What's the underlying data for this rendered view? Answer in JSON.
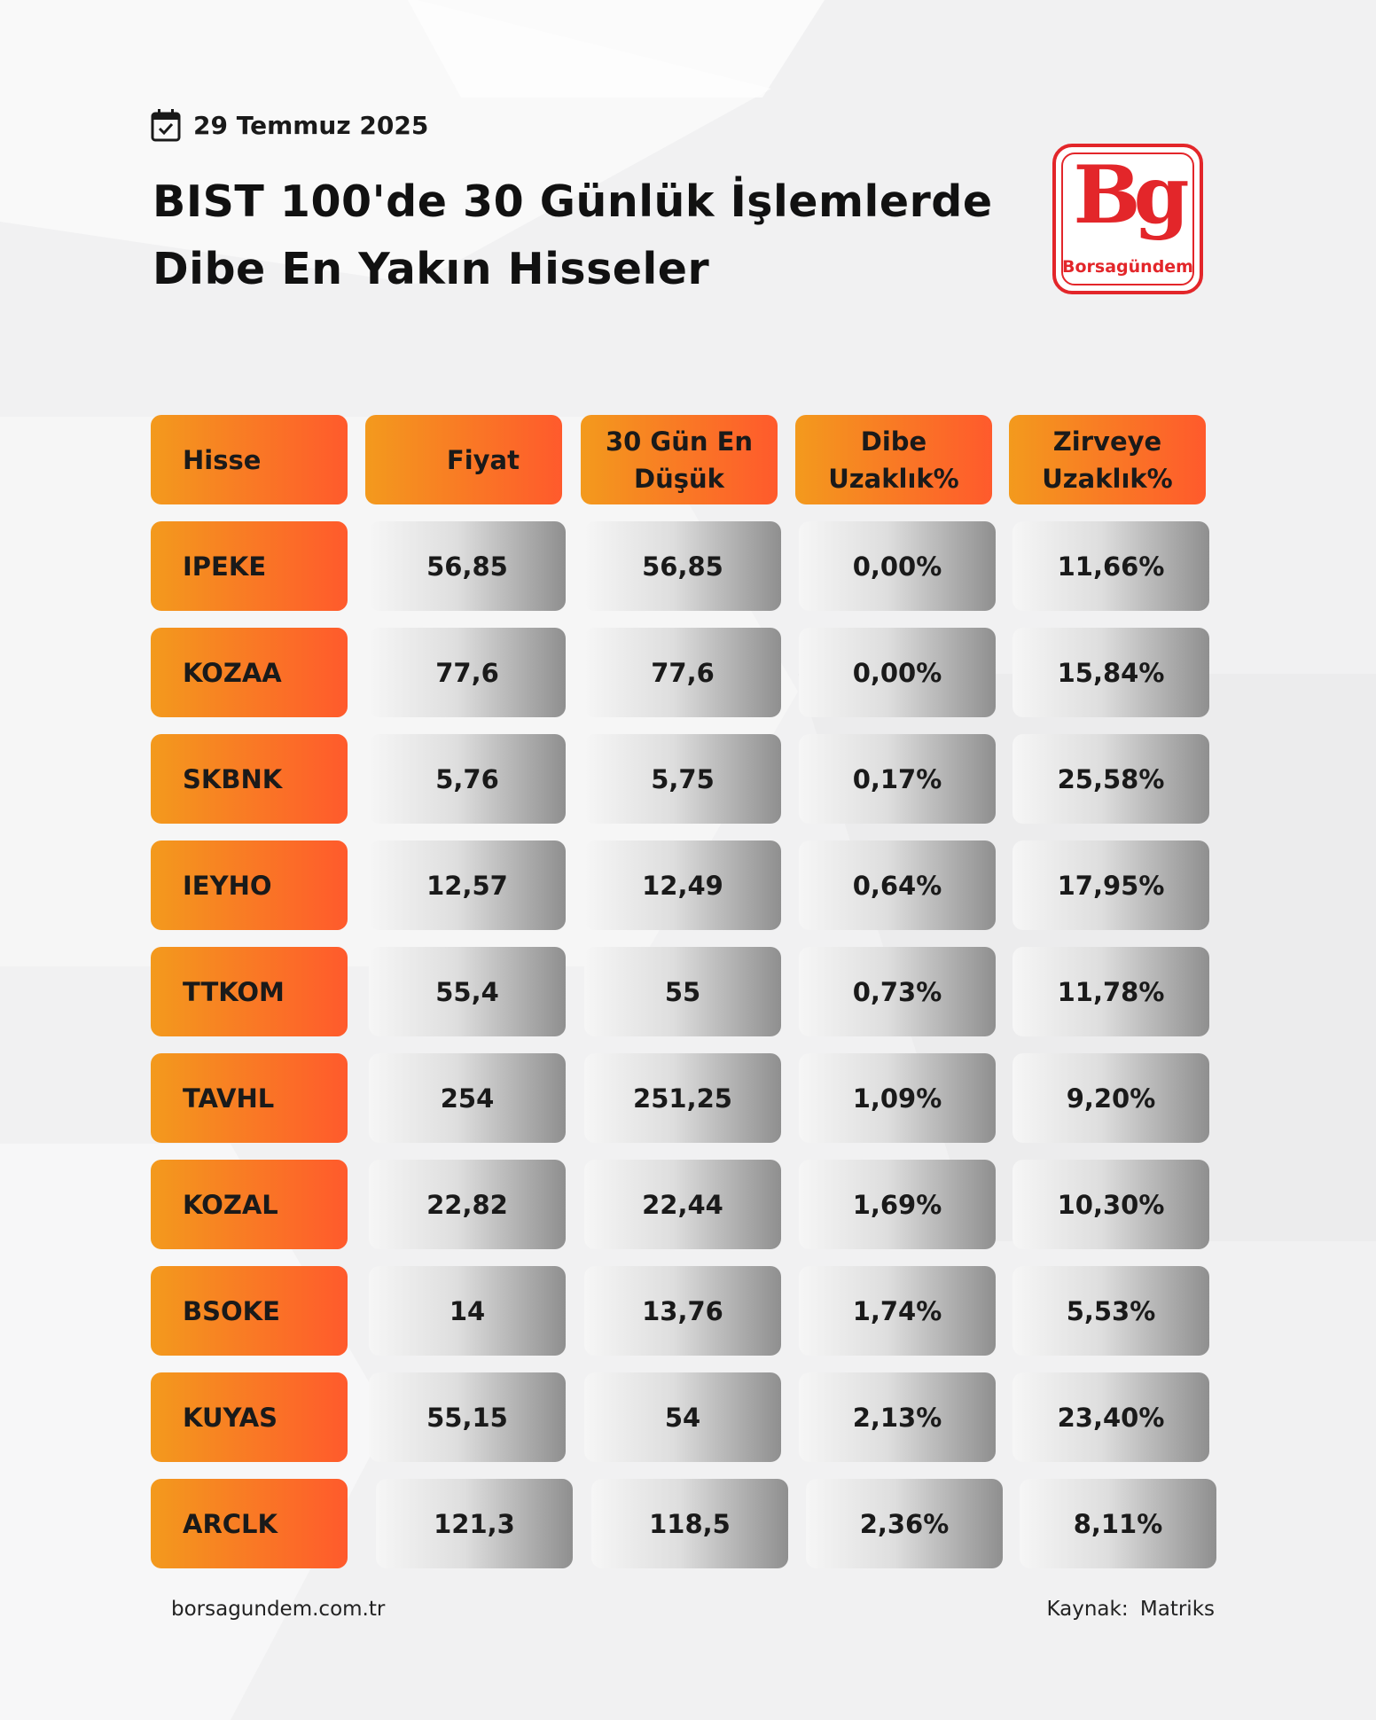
{
  "header": {
    "date": "29 Temmuz 2025",
    "title_line1": "BIST 100'de 30 Günlük İşlemlerde",
    "title_line2": "Dibe En Yakın Hisseler"
  },
  "logo": {
    "mark": "Bg",
    "text": "Borsagündem"
  },
  "colors": {
    "accent_start": "#f39a1d",
    "accent_end": "#ff5a2c",
    "brand_red": "#e3262a"
  },
  "chart_data": {
    "type": "table",
    "columns": [
      "Hisse",
      "Fiyat",
      "30 Gün En Düşük",
      "Dibe Uzaklık%",
      "Zirveye Uzaklık%"
    ],
    "rows": [
      [
        "IPEKE",
        "56,85",
        "56,85",
        "0,00%",
        "11,66%"
      ],
      [
        "KOZAA",
        "77,6",
        "77,6",
        "0,00%",
        "15,84%"
      ],
      [
        "SKBNK",
        "5,76",
        "5,75",
        "0,17%",
        "25,58%"
      ],
      [
        "IEYHO",
        "12,57",
        "12,49",
        "0,64%",
        "17,95%"
      ],
      [
        "TTKOM",
        "55,4",
        "55",
        "0,73%",
        "11,78%"
      ],
      [
        "TAVHL",
        "254",
        "251,25",
        "1,09%",
        "9,20%"
      ],
      [
        "KOZAL",
        "22,82",
        "22,44",
        "1,69%",
        "10,30%"
      ],
      [
        "BSOKE",
        "14",
        "13,76",
        "1,74%",
        "5,53%"
      ],
      [
        "KUYAS",
        "55,15",
        "54",
        "2,13%",
        "23,40%"
      ],
      [
        "ARCLK",
        "121,3",
        "118,5",
        "2,36%",
        "8,11%"
      ]
    ]
  },
  "footer": {
    "site": "borsagundem.com.tr",
    "source": "Kaynak:  Matriks"
  }
}
